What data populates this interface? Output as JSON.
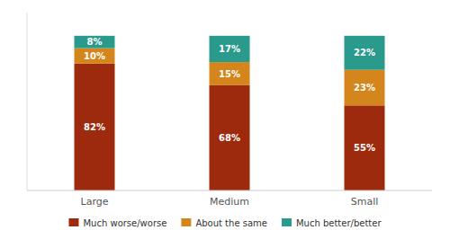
{
  "chart_data": {
    "type": "bar",
    "stacked": true,
    "categories": [
      "Large",
      "Medium",
      "Small"
    ],
    "series": [
      {
        "name": "Much worse/worse",
        "color": "#9e2a0e",
        "values": [
          82,
          68,
          55
        ],
        "value_labels": [
          "82%",
          "68%",
          "55%"
        ]
      },
      {
        "name": "About the same",
        "color": "#d4861c",
        "values": [
          10,
          15,
          23
        ],
        "value_labels": [
          "10%",
          "15%",
          "23%"
        ]
      },
      {
        "name": "Much better/better",
        "color": "#2a9a8c",
        "values": [
          8,
          17,
          22
        ],
        "value_labels": [
          "8%",
          "17%",
          "22%"
        ]
      }
    ],
    "ylim": [
      0,
      115
    ],
    "data_labels": true,
    "tick_labels": "x",
    "legend": "bottom"
  }
}
